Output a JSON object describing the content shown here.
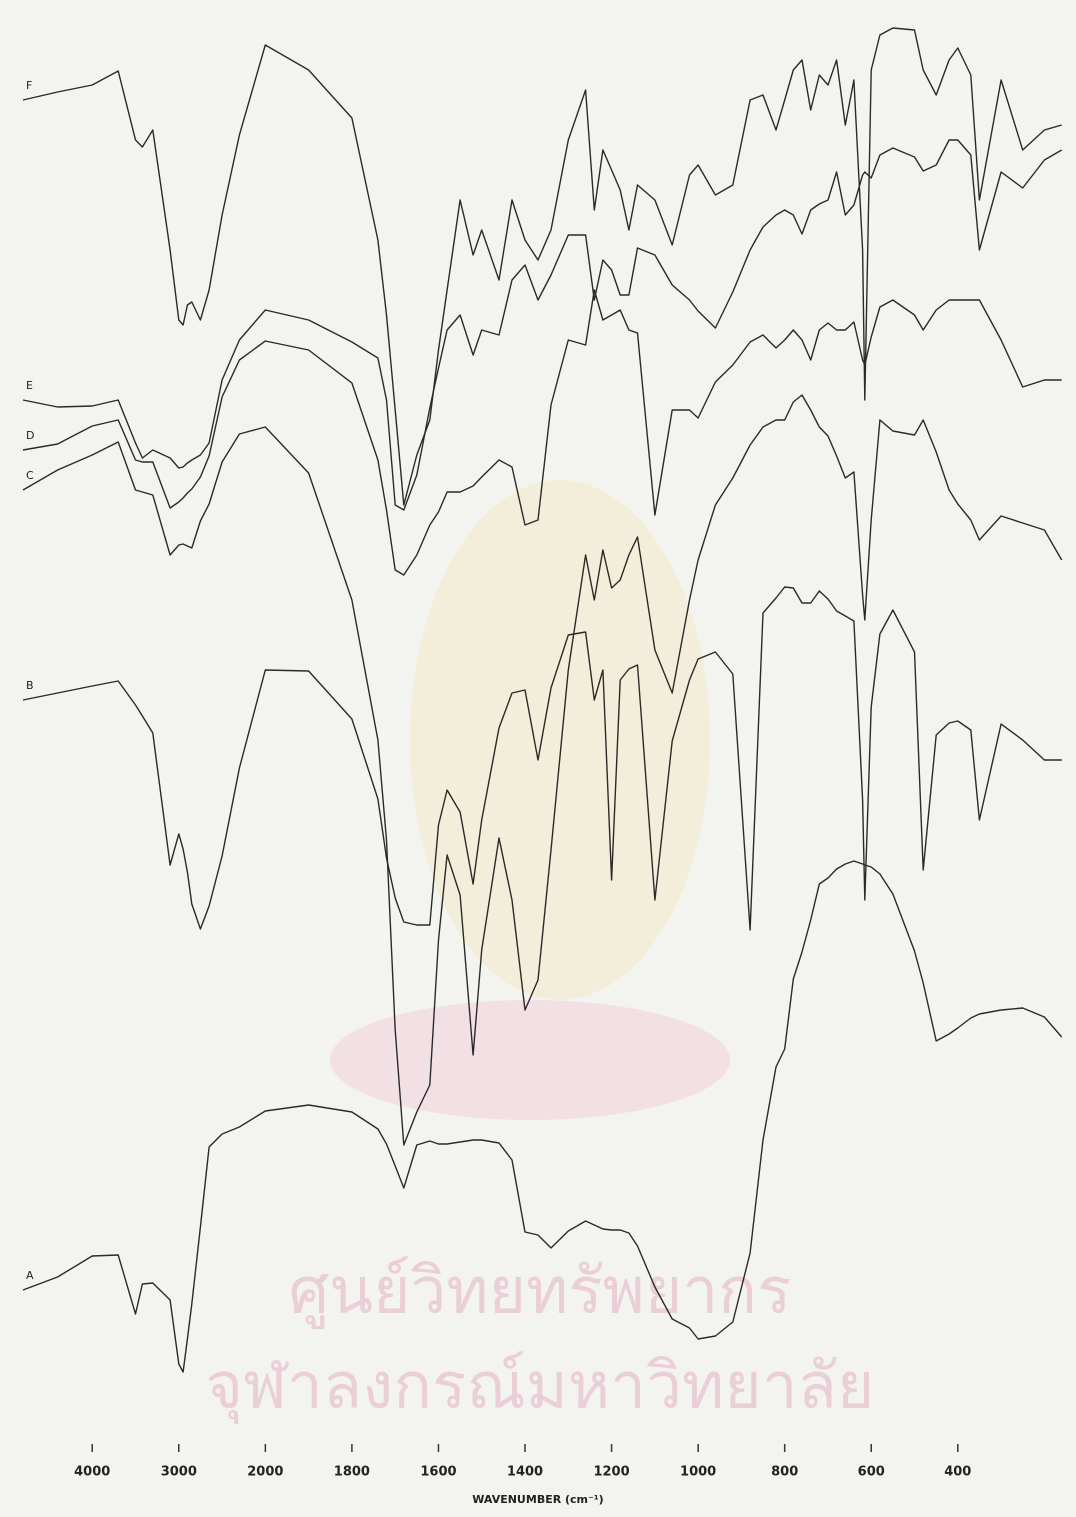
{
  "chart_data": {
    "type": "line",
    "x_label": "WAVENUMBER (cm⁻¹)",
    "watermark": [
      "ศูนย์วิทยทรัพยากร",
      "จุฬาลงกรณ์มหาวิทยาลัย"
    ],
    "x": [
      4800,
      4400,
      4000,
      3700,
      3500,
      3420,
      3300,
      3100,
      3000,
      2950,
      2900,
      2850,
      2750,
      2650,
      2500,
      2300,
      2000,
      1900,
      1800,
      1740,
      1720,
      1700,
      1680,
      1650,
      1620,
      1600,
      1580,
      1550,
      1520,
      1500,
      1460,
      1430,
      1400,
      1370,
      1340,
      1300,
      1260,
      1240,
      1220,
      1200,
      1180,
      1160,
      1140,
      1100,
      1060,
      1020,
      1000,
      960,
      920,
      880,
      850,
      820,
      800,
      780,
      760,
      740,
      720,
      700,
      680,
      660,
      640,
      620,
      615,
      600,
      580,
      550,
      500,
      480,
      450,
      420,
      400,
      370,
      350,
      300,
      250,
      200,
      160
    ],
    "series": [
      {
        "name": "F",
        "color": "#2a2a2a",
        "values": [
          135,
          135.8,
          136.5,
          137.9,
          131,
          130.3,
          132,
          120,
          113,
          112.5,
          114.5,
          114.8,
          113,
          116,
          123.5,
          131.5,
          140.5,
          138,
          133.2,
          121,
          113.5,
          104,
          94.5,
          99.5,
          103,
          110,
          116,
          125,
          119.5,
          122,
          117,
          125,
          121,
          119,
          122,
          131,
          136,
          124,
          130,
          128,
          126,
          122,
          126.5,
          125,
          120.5,
          127.5,
          128.5,
          125.5,
          126.5,
          135,
          135.5,
          132,
          135,
          138,
          139,
          134,
          137.5,
          136.5,
          139,
          132.5,
          137,
          120,
          105,
          138,
          141.5,
          142.2,
          142,
          138,
          135.5,
          139,
          140.2,
          137.5,
          125,
          137,
          130,
          132,
          132.5
        ]
      },
      {
        "name": "E",
        "color": "#2a2a2a",
        "values": [
          105,
          104.3,
          104.4,
          105,
          100.7,
          99.2,
          100,
          99.2,
          98.2,
          98.3,
          98.7,
          99,
          99.5,
          100.7,
          107,
          111,
          114,
          113,
          110.8,
          109.2,
          105,
          94.5,
          94,
          97.5,
          104.2,
          108.2,
          112,
          113.5,
          109.5,
          112,
          111.5,
          117,
          118.5,
          115,
          117.5,
          121.5,
          121.5,
          115,
          119,
          118,
          115.5,
          115.5,
          120.2,
          119.5,
          116.5,
          115,
          113.9,
          112.2,
          115.8,
          120,
          122.3,
          123.5,
          124,
          123.5,
          121.6,
          124,
          124.6,
          125,
          127.8,
          123.5,
          124.5,
          127.5,
          127.8,
          127.2,
          129.5,
          130.2,
          129.3,
          127.9,
          128.5,
          131,
          131,
          129.5,
          120,
          127.8,
          126.2,
          129,
          130
        ]
      },
      {
        "name": "D",
        "color": "#2a2a2a",
        "values": [
          100,
          100.6,
          102.4,
          103,
          99,
          98.8,
          98.8,
          94.2,
          94.8,
          95.2,
          95.7,
          96.1,
          97.3,
          99.4,
          105.3,
          109,
          110.9,
          110,
          106.7,
          99,
          94,
          88,
          87.5,
          89.5,
          92.5,
          93.8,
          95.8,
          95.8,
          96.4,
          97.3,
          99,
          98.3,
          92.5,
          93,
          104.5,
          111,
          110.5,
          116,
          113,
          113.5,
          114,
          112,
          111.7,
          93.5,
          104,
          104,
          103.2,
          106.8,
          108.5,
          110.8,
          111.5,
          110.2,
          111,
          112,
          111,
          109,
          112,
          112.7,
          112,
          112,
          112.8,
          109,
          108.5,
          111.3,
          114.3,
          115,
          113.5,
          112,
          114,
          115,
          115,
          115,
          115,
          111,
          106.3,
          107,
          107
        ]
      },
      {
        "name": "C",
        "color": "#2a2a2a",
        "values": [
          96,
          98,
          99.5,
          100.8,
          96,
          95.8,
          95.5,
          89.5,
          90.5,
          90.6,
          90.4,
          90.2,
          92.9,
          94.6,
          98.8,
          101.6,
          102.3,
          97.7,
          85,
          71,
          61,
          42,
          30.5,
          33.8,
          36.5,
          51,
          59.5,
          55.5,
          39.5,
          50,
          61.2,
          55,
          44,
          47,
          60,
          78,
          89.5,
          85,
          90,
          86.2,
          87,
          89.5,
          91.3,
          80,
          75.7,
          85,
          89,
          94.5,
          97.2,
          100.5,
          102.3,
          103,
          103,
          104.8,
          105.5,
          104,
          102.3,
          101.4,
          99.4,
          97.2,
          97.8,
          85.5,
          83,
          93,
          103,
          101.9,
          101.5,
          103,
          99.8,
          96,
          94.6,
          93,
          91,
          93.4,
          92.7,
          92,
          89
        ]
      },
      {
        "name": "B",
        "color": "#2a2a2a",
        "values": [
          75,
          75.7,
          76.4,
          76.9,
          74.5,
          73.4,
          71.7,
          58.5,
          61.6,
          60.1,
          57.8,
          54.6,
          52.1,
          54.4,
          59.4,
          68.2,
          78,
          77.9,
          73.1,
          65.1,
          59.2,
          55.2,
          52.8,
          52.5,
          52.5,
          62.5,
          66,
          63.8,
          56.6,
          63,
          72.2,
          75.7,
          76,
          69,
          76.2,
          81.5,
          81.8,
          75,
          78,
          57,
          77,
          78.1,
          78.5,
          55,
          70.9,
          77,
          79.1,
          79.8,
          77.6,
          52,
          83.7,
          85.2,
          86.3,
          86.2,
          84.7,
          84.7,
          85.9,
          85.1,
          83.9,
          83.4,
          82.9,
          65,
          55,
          74.3,
          81.6,
          84,
          79.8,
          58,
          71.5,
          72.7,
          72.9,
          72,
          63,
          72.6,
          71,
          69,
          69
        ]
      },
      {
        "name": "A",
        "color": "#2a2a2a",
        "values": [
          16,
          17.3,
          19.4,
          19.5,
          13.6,
          16.6,
          16.7,
          15,
          8.6,
          7.8,
          11.1,
          14.6,
          22.3,
          30.3,
          31.6,
          32.3,
          33.9,
          34.5,
          33.8,
          32.1,
          30.6,
          28.4,
          26.2,
          30.5,
          30.9,
          30.6,
          30.6,
          30.8,
          31,
          31,
          30.7,
          29,
          21.8,
          21.5,
          20.2,
          21.9,
          22.9,
          22.5,
          22.1,
          22,
          22,
          21.7,
          20.4,
          16.3,
          13.1,
          12.2,
          11.1,
          11.4,
          12.8,
          19.7,
          31,
          38.3,
          40.1,
          47.1,
          49.8,
          53,
          56.6,
          57.2,
          58.1,
          58.6,
          58.9,
          58.6,
          58.5,
          58.3,
          57.6,
          55.6,
          49.9,
          46.7,
          40.9,
          41.6,
          42.2,
          43.2,
          43.6,
          44,
          44.2,
          43.3,
          41.3
        ]
      }
    ],
    "xlim": [
      4950,
      150
    ],
    "xticks": [
      4000,
      3000,
      2000,
      1800,
      1600,
      1400,
      1200,
      1000,
      800,
      600,
      400
    ],
    "ylim": [
      0,
      144
    ],
    "grid": false
  }
}
